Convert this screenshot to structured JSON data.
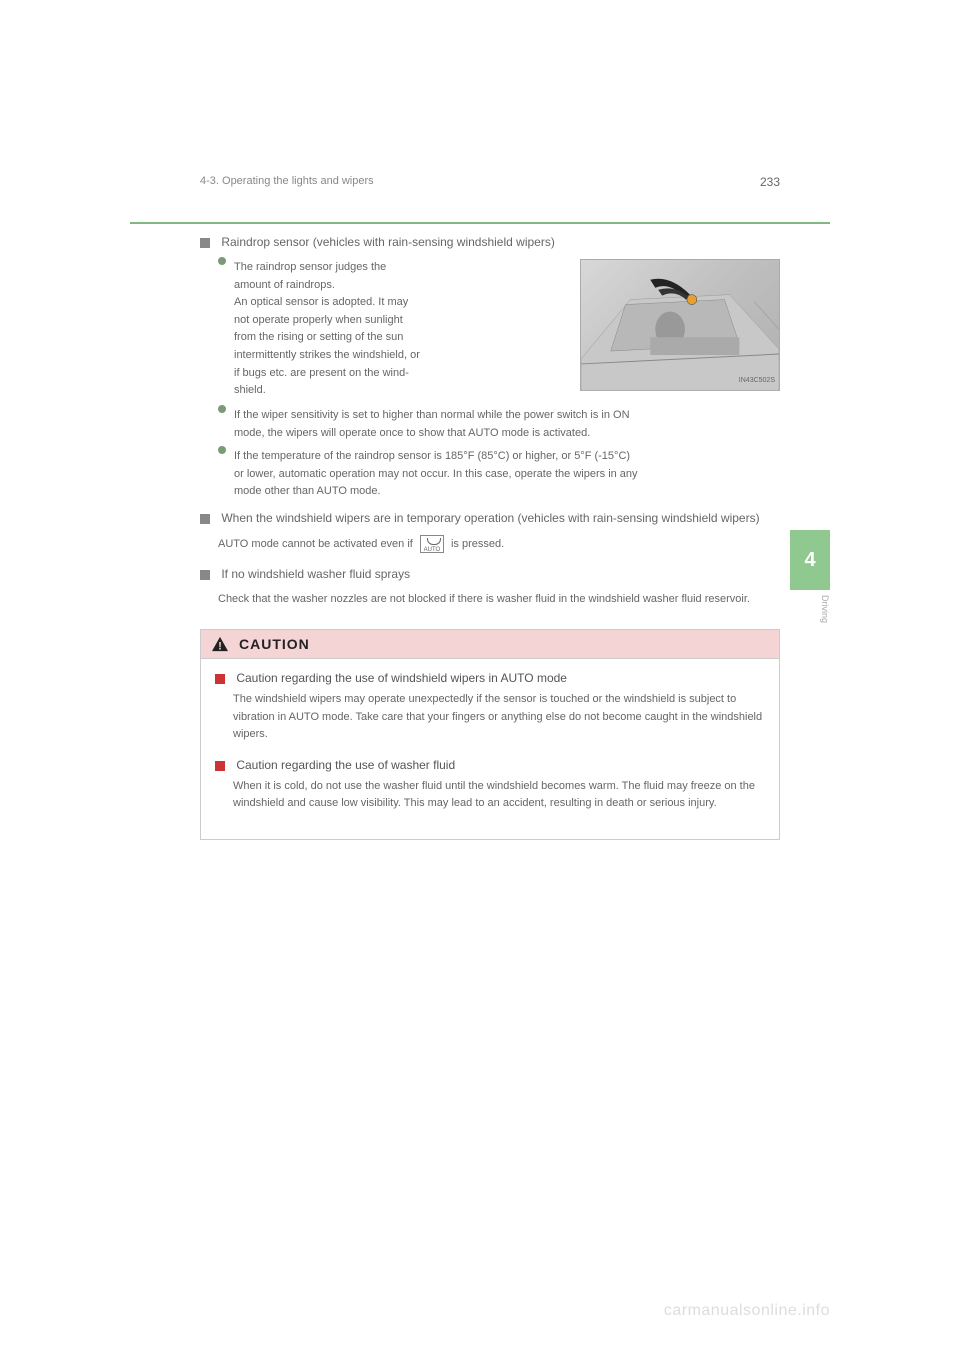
{
  "header": {
    "page_number": "233",
    "section_label": "4-3. Operating the lights and wipers"
  },
  "side_tab": {
    "number": "4",
    "label": "Driving"
  },
  "sections": [
    {
      "type": "square",
      "title": "Raindrop sensor (vehicles with rain-sensing windshield wipers)",
      "bullets": [
        {
          "text_lines": [
            "The raindrop sensor judges the",
            "amount of raindrops.",
            "An optical sensor is adopted. It may",
            "not operate properly when sunlight",
            "from the rising or setting of the sun",
            "intermittently strikes the windshield, or",
            "if bugs etc. are present on the wind-",
            "shield."
          ],
          "has_image": true
        },
        {
          "text_lines": [
            "If the wiper sensitivity is set to higher than normal while the power switch is in ON",
            "mode, the wipers will operate once to show that AUTO mode is activated."
          ],
          "has_image": false
        },
        {
          "text_lines": [
            "If the temperature of the raindrop sensor is 185°F (85°C) or higher, or 5°F (-15°C)",
            "or lower, automatic operation may not occur. In this case, operate the wipers in any",
            "mode other than AUTO mode."
          ],
          "has_image": false
        }
      ]
    },
    {
      "type": "square",
      "title": "When the windshield wipers are in temporary operation (vehicles with rain-sensing windshield wipers)",
      "body": "AUTO mode cannot be activated even if __ICON__ is pressed."
    },
    {
      "type": "square",
      "title": "If no windshield washer fluid sprays",
      "body": "Check that the washer nozzles are not blocked if there is washer fluid in the windshield washer fluid reservoir."
    }
  ],
  "caution": {
    "header": "CAUTION",
    "items": [
      {
        "title": "Caution regarding the use of windshield wipers in AUTO mode",
        "body": "The windshield wipers may operate unexpectedly if the sensor is touched or the windshield is subject to vibration in AUTO mode. Take care that your fingers or anything else do not become caught in the windshield wipers."
      },
      {
        "title": "Caution regarding the use of washer fluid",
        "body": "When it is cold, do not use the washer fluid until the windshield becomes warm. The fluid may freeze on the windshield and cause low visibility. This may lead to an accident, resulting in death or serious injury."
      }
    ]
  },
  "image": {
    "label": "IN43C502S"
  },
  "footer": {
    "url": "carmanualsonline.info"
  },
  "icon": {
    "label": "AUTO"
  },
  "colors": {
    "accent_green": "#7fb97f",
    "tab_green": "#8fc98f",
    "caution_bg": "#f4d4d4",
    "red": "#cc3333"
  }
}
